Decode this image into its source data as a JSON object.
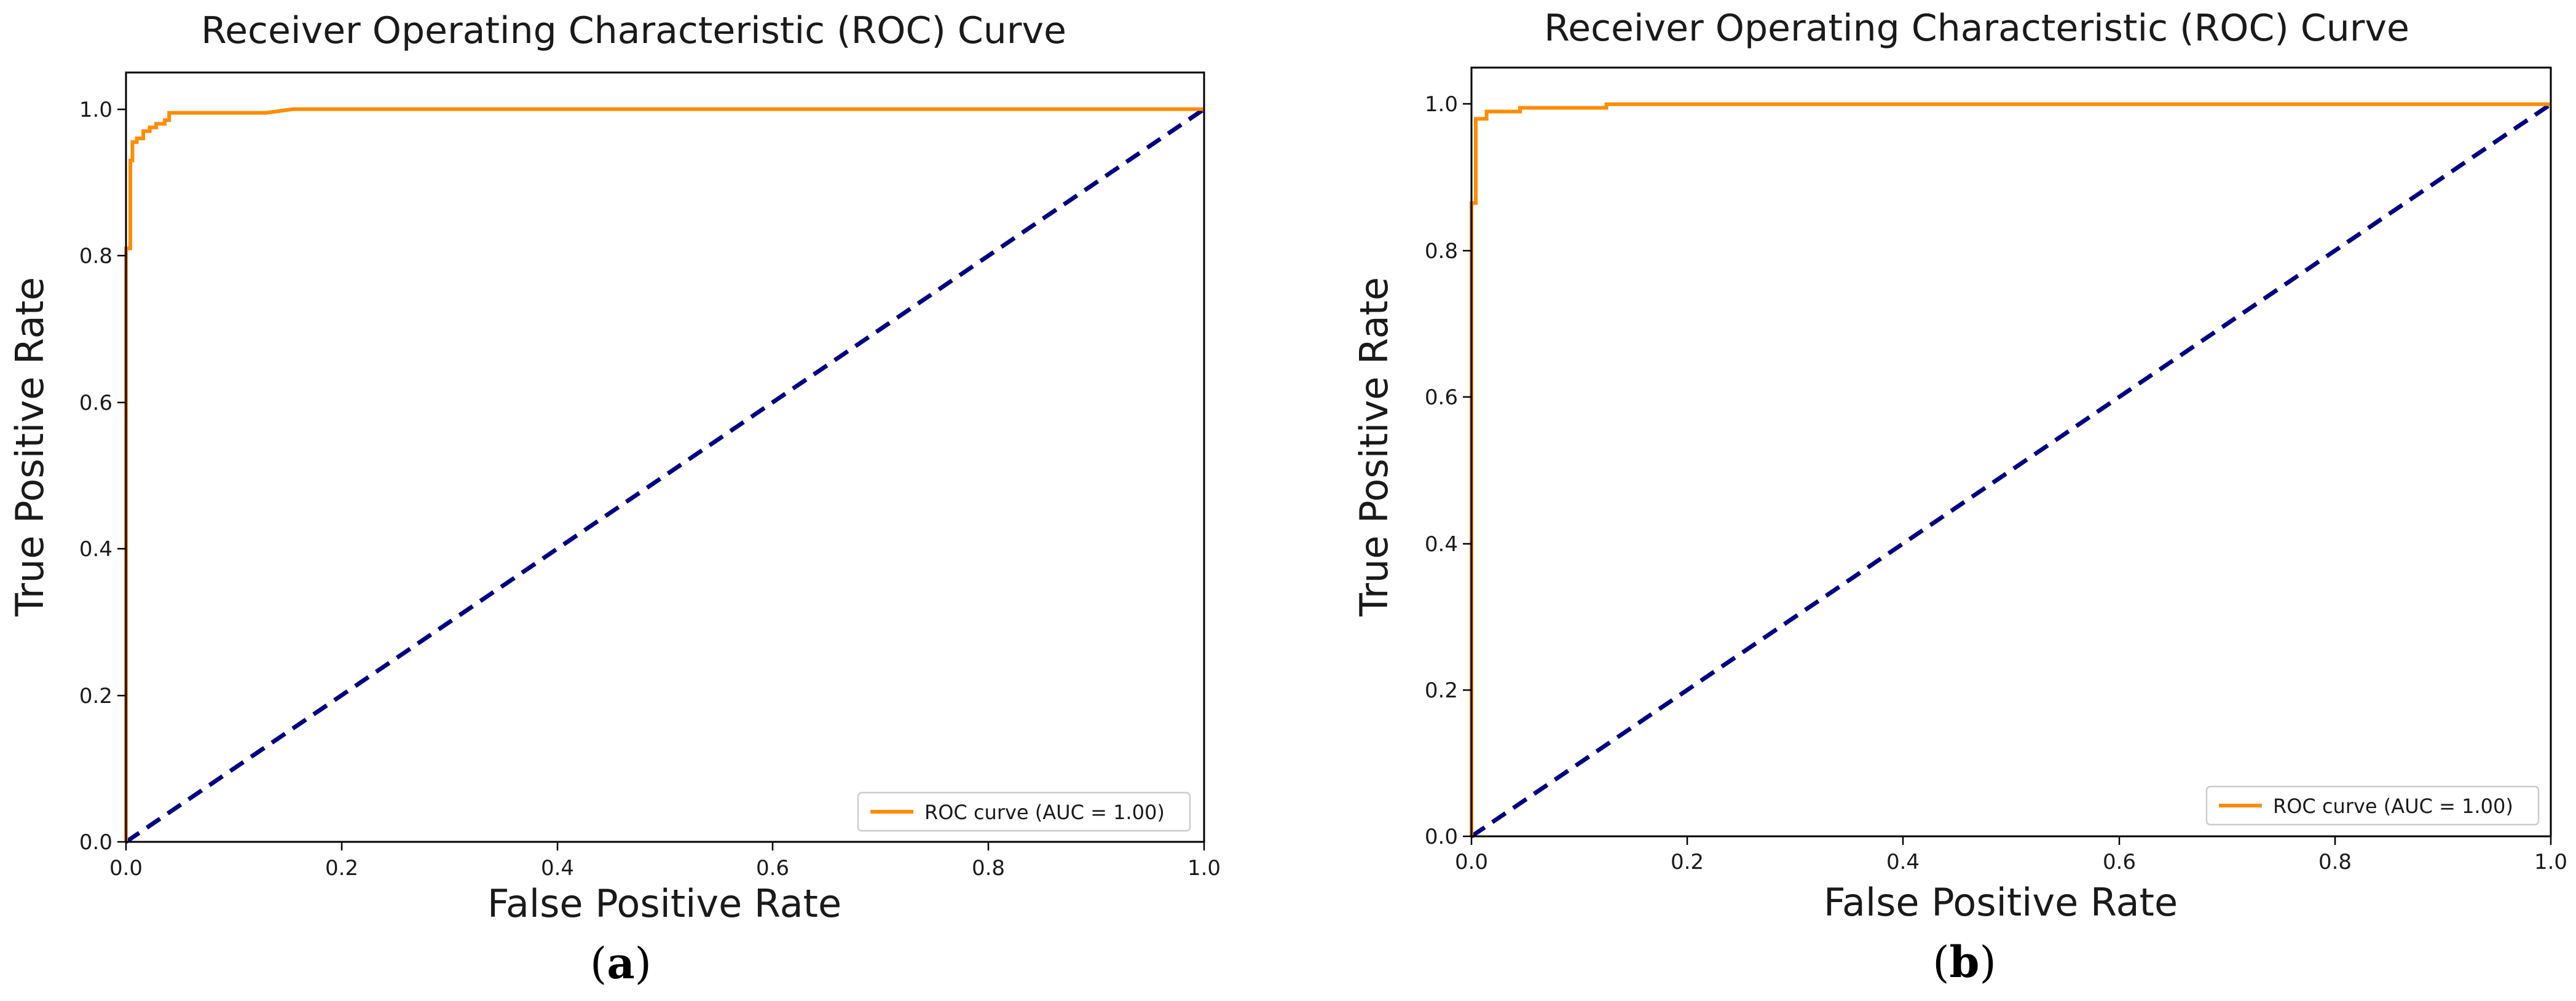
{
  "chart_data": [
    {
      "type": "line",
      "panel_label": "a",
      "title": "Receiver Operating Characteristic (ROC) Curve",
      "xlabel": "False Positive Rate",
      "ylabel": "True Positive Rate",
      "xlim": [
        0.0,
        1.0
      ],
      "ylim": [
        0.0,
        1.05
      ],
      "xticks": [
        0.0,
        0.2,
        0.4,
        0.6,
        0.8,
        1.0
      ],
      "xtick_labels": [
        "0.0",
        "0.2",
        "0.4",
        "0.6",
        "0.8",
        "1.0"
      ],
      "yticks": [
        0.0,
        0.2,
        0.4,
        0.6,
        0.8,
        1.0
      ],
      "ytick_labels": [
        "0.0",
        "0.2",
        "0.4",
        "0.6",
        "0.8",
        "1.0"
      ],
      "legend_position": "lower-right",
      "series": [
        {
          "name": "ROC curve (AUC = 1.00)",
          "color": "#ff8c00",
          "style": "solid",
          "in_legend": true,
          "x": [
            0.0,
            0.0,
            0.004,
            0.004,
            0.006,
            0.006,
            0.01,
            0.01,
            0.016,
            0.016,
            0.022,
            0.022,
            0.028,
            0.028,
            0.036,
            0.036,
            0.04,
            0.04,
            0.13,
            0.155,
            0.16,
            1.0
          ],
          "y": [
            0.0,
            0.81,
            0.81,
            0.93,
            0.93,
            0.955,
            0.955,
            0.96,
            0.96,
            0.97,
            0.97,
            0.975,
            0.975,
            0.98,
            0.98,
            0.985,
            0.985,
            0.995,
            0.995,
            1.0,
            1.0,
            1.0
          ]
        },
        {
          "name": "chance",
          "color": "#000080",
          "style": "dashed",
          "in_legend": false,
          "x": [
            0.0,
            1.0
          ],
          "y": [
            0.0,
            1.0
          ]
        }
      ]
    },
    {
      "type": "line",
      "panel_label": "b",
      "title": "Receiver Operating Characteristic (ROC) Curve",
      "xlabel": "False Positive Rate",
      "ylabel": "True Positive Rate",
      "xlim": [
        0.0,
        1.0
      ],
      "ylim": [
        0.0,
        1.05
      ],
      "xticks": [
        0.0,
        0.2,
        0.4,
        0.6,
        0.8,
        1.0
      ],
      "xtick_labels": [
        "0.0",
        "0.2",
        "0.4",
        "0.6",
        "0.8",
        "1.0"
      ],
      "yticks": [
        0.0,
        0.2,
        0.4,
        0.6,
        0.8,
        1.0
      ],
      "ytick_labels": [
        "0.0",
        "0.2",
        "0.4",
        "0.6",
        "0.8",
        "1.0"
      ],
      "legend_position": "lower-right",
      "series": [
        {
          "name": "ROC curve (AUC = 1.00)",
          "color": "#ff8c00",
          "style": "solid",
          "in_legend": true,
          "x": [
            0.0,
            0.0,
            0.004,
            0.004,
            0.014,
            0.014,
            0.045,
            0.045,
            0.125,
            0.125,
            1.0
          ],
          "y": [
            0.0,
            0.865,
            0.865,
            0.98,
            0.98,
            0.99,
            0.99,
            0.995,
            0.995,
            1.0,
            1.0
          ]
        },
        {
          "name": "chance",
          "color": "#000080",
          "style": "dashed",
          "in_legend": false,
          "x": [
            0.0,
            1.0
          ],
          "y": [
            0.0,
            1.0
          ]
        }
      ]
    }
  ]
}
